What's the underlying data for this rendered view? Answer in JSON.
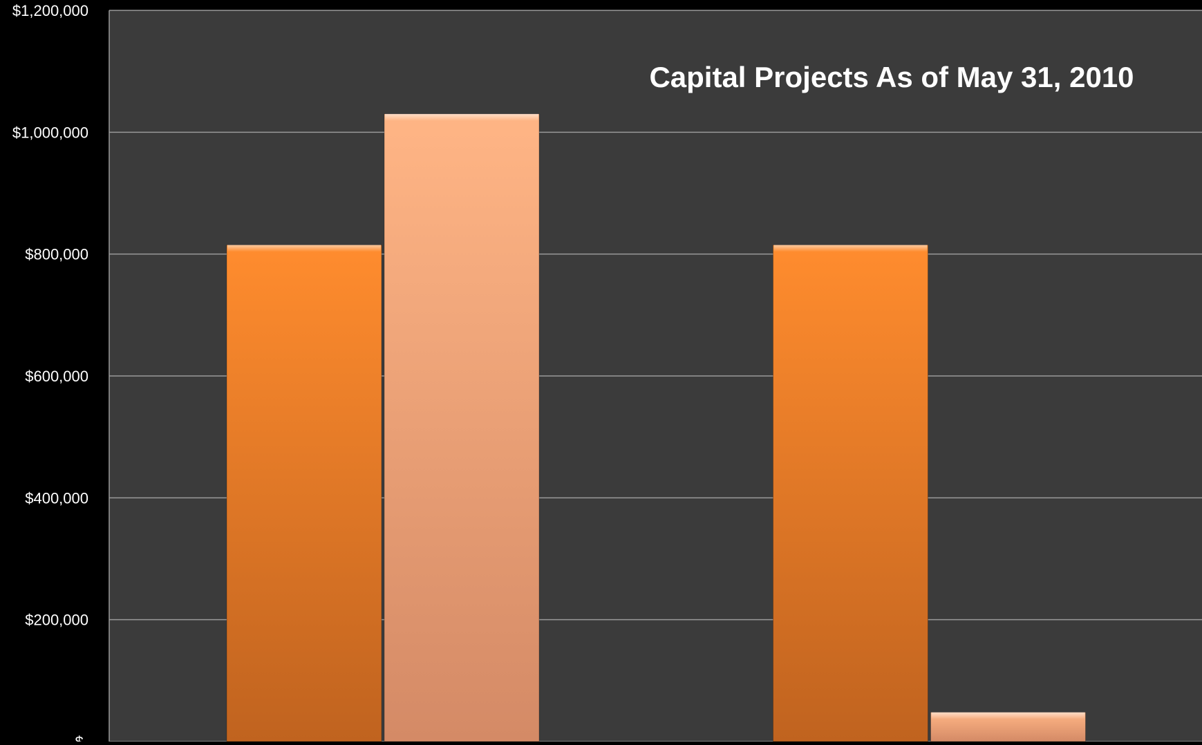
{
  "colors": {
    "page_background": "#000000",
    "plot_background": "#3b3b3b",
    "gridline": "#9a9a9a",
    "series_1_top": "#ff8c2e",
    "series_1_bottom": "#c0631f",
    "series_2_top": "#ffb585",
    "series_2_bottom": "#d48a66",
    "text": "#ffffff"
  },
  "chart_data": {
    "type": "bar",
    "title": "Capital Projects As of May 31, 2010",
    "xlabel": "",
    "ylabel": "",
    "ylim": [
      0,
      1200000
    ],
    "grid": true,
    "legend": "none",
    "y_ticks": [
      {
        "value": 0,
        "label": "$-"
      },
      {
        "value": 200000,
        "label": "$200,000"
      },
      {
        "value": 400000,
        "label": "$400,000"
      },
      {
        "value": 600000,
        "label": "$600,000"
      },
      {
        "value": 800000,
        "label": "$800,000"
      },
      {
        "value": 1000000,
        "label": "$1,000,000"
      },
      {
        "value": 1200000,
        "label": "$1,200,000"
      }
    ],
    "categories": [
      "",
      ""
    ],
    "series": [
      {
        "values": [
          815000,
          815000
        ]
      },
      {
        "values": [
          1030000,
          48000
        ]
      }
    ]
  }
}
